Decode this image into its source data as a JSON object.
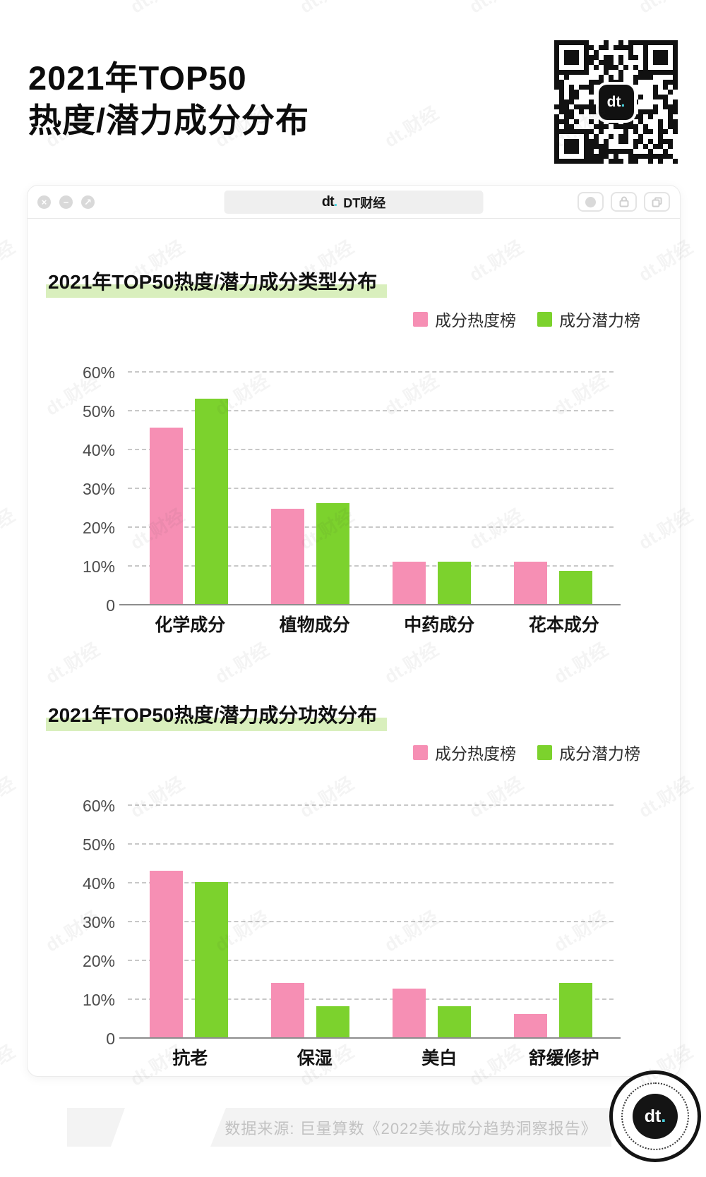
{
  "page": {
    "title_line1": "2021年TOP50",
    "title_line2": "热度/潜力成分分布",
    "watermark_text": "dt.财经"
  },
  "window": {
    "controls": [
      {
        "name": "close",
        "glyph": "×"
      },
      {
        "name": "minimize",
        "glyph": "−"
      },
      {
        "name": "expand",
        "glyph": "↗"
      }
    ],
    "address": {
      "logo_text": "dt",
      "logo_dot": ".",
      "label": "DT财经"
    }
  },
  "colors": {
    "hot_pink": "#F68FB4",
    "potential_green": "#7CD22D",
    "title_highlight": "#D9EFBD"
  },
  "chart_data": [
    {
      "type": "bar",
      "title": "2021年TOP50热度/潜力成分类型分布",
      "categories": [
        "化学成分",
        "植物成分",
        "中药成分",
        "花本成分"
      ],
      "series": [
        {
          "name": "成分热度榜",
          "color": "#F68FB4",
          "values": [
            45.5,
            24.5,
            11,
            11
          ]
        },
        {
          "name": "成分潜力榜",
          "color": "#7CD22D",
          "values": [
            53,
            26,
            11,
            8.5
          ]
        }
      ],
      "ylabel_ticks": [
        "60%",
        "50%",
        "40%",
        "30%",
        "20%",
        "10%",
        "0"
      ],
      "ylim": [
        0,
        62
      ],
      "grid": "dashed-horizontal",
      "legend_position": "top-right",
      "unit": "%"
    },
    {
      "type": "bar",
      "title": "2021年TOP50热度/潜力成分功效分布",
      "categories": [
        "抗老",
        "保湿",
        "美白",
        "舒缓修护"
      ],
      "series": [
        {
          "name": "成分热度榜",
          "color": "#F68FB4",
          "values": [
            43,
            14,
            12.5,
            6
          ]
        },
        {
          "name": "成分潜力榜",
          "color": "#7CD22D",
          "values": [
            40,
            8,
            8,
            14
          ]
        }
      ],
      "ylabel_ticks": [
        "60%",
        "50%",
        "40%",
        "30%",
        "20%",
        "10%",
        "0"
      ],
      "ylim": [
        0,
        62
      ],
      "grid": "dashed-horizontal",
      "legend_position": "top-right",
      "unit": "%"
    }
  ],
  "footer": {
    "source": "数据来源: 巨量算数《2022美妆成分趋势洞察报告》",
    "logo_text": "dt",
    "logo_dot": "."
  }
}
